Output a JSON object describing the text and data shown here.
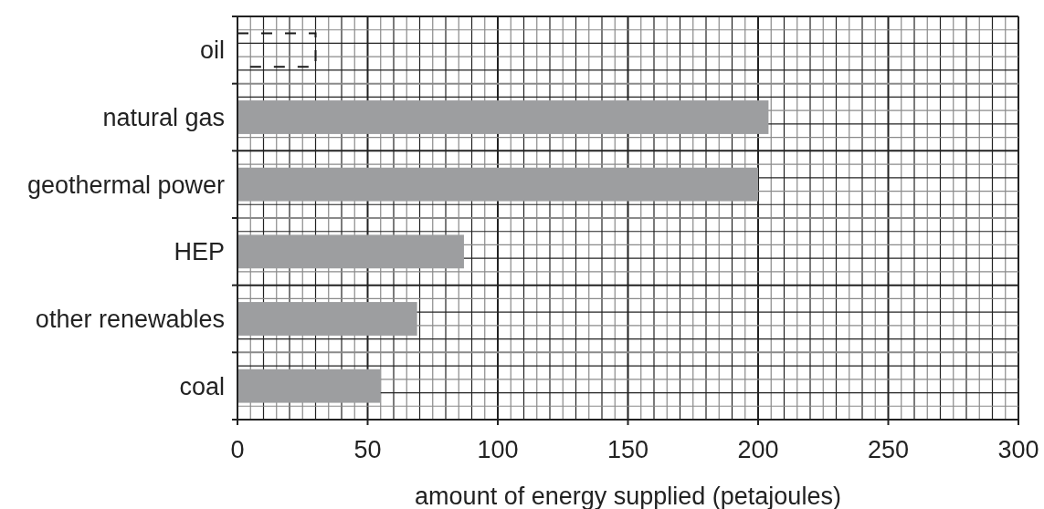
{
  "chart_data": {
    "type": "bar",
    "orientation": "horizontal",
    "categories": [
      "oil",
      "natural gas",
      "geothermal power",
      "HEP",
      "other renewables",
      "coal"
    ],
    "series": [
      {
        "color": "#1a1a1a",
        "line_style": "dashed",
        "values": [
          30,
          null,
          null,
          null,
          null,
          null
        ]
      },
      {
        "color": "#9d9ea0",
        "values": [
          null,
          204,
          200,
          87,
          69,
          55
        ]
      }
    ],
    "xlim": [
      0,
      300
    ],
    "xticks": [
      0,
      50,
      100,
      150,
      200,
      250,
      300
    ],
    "xlabel": "amount of energy supplied (petajoules)",
    "grid": true
  }
}
